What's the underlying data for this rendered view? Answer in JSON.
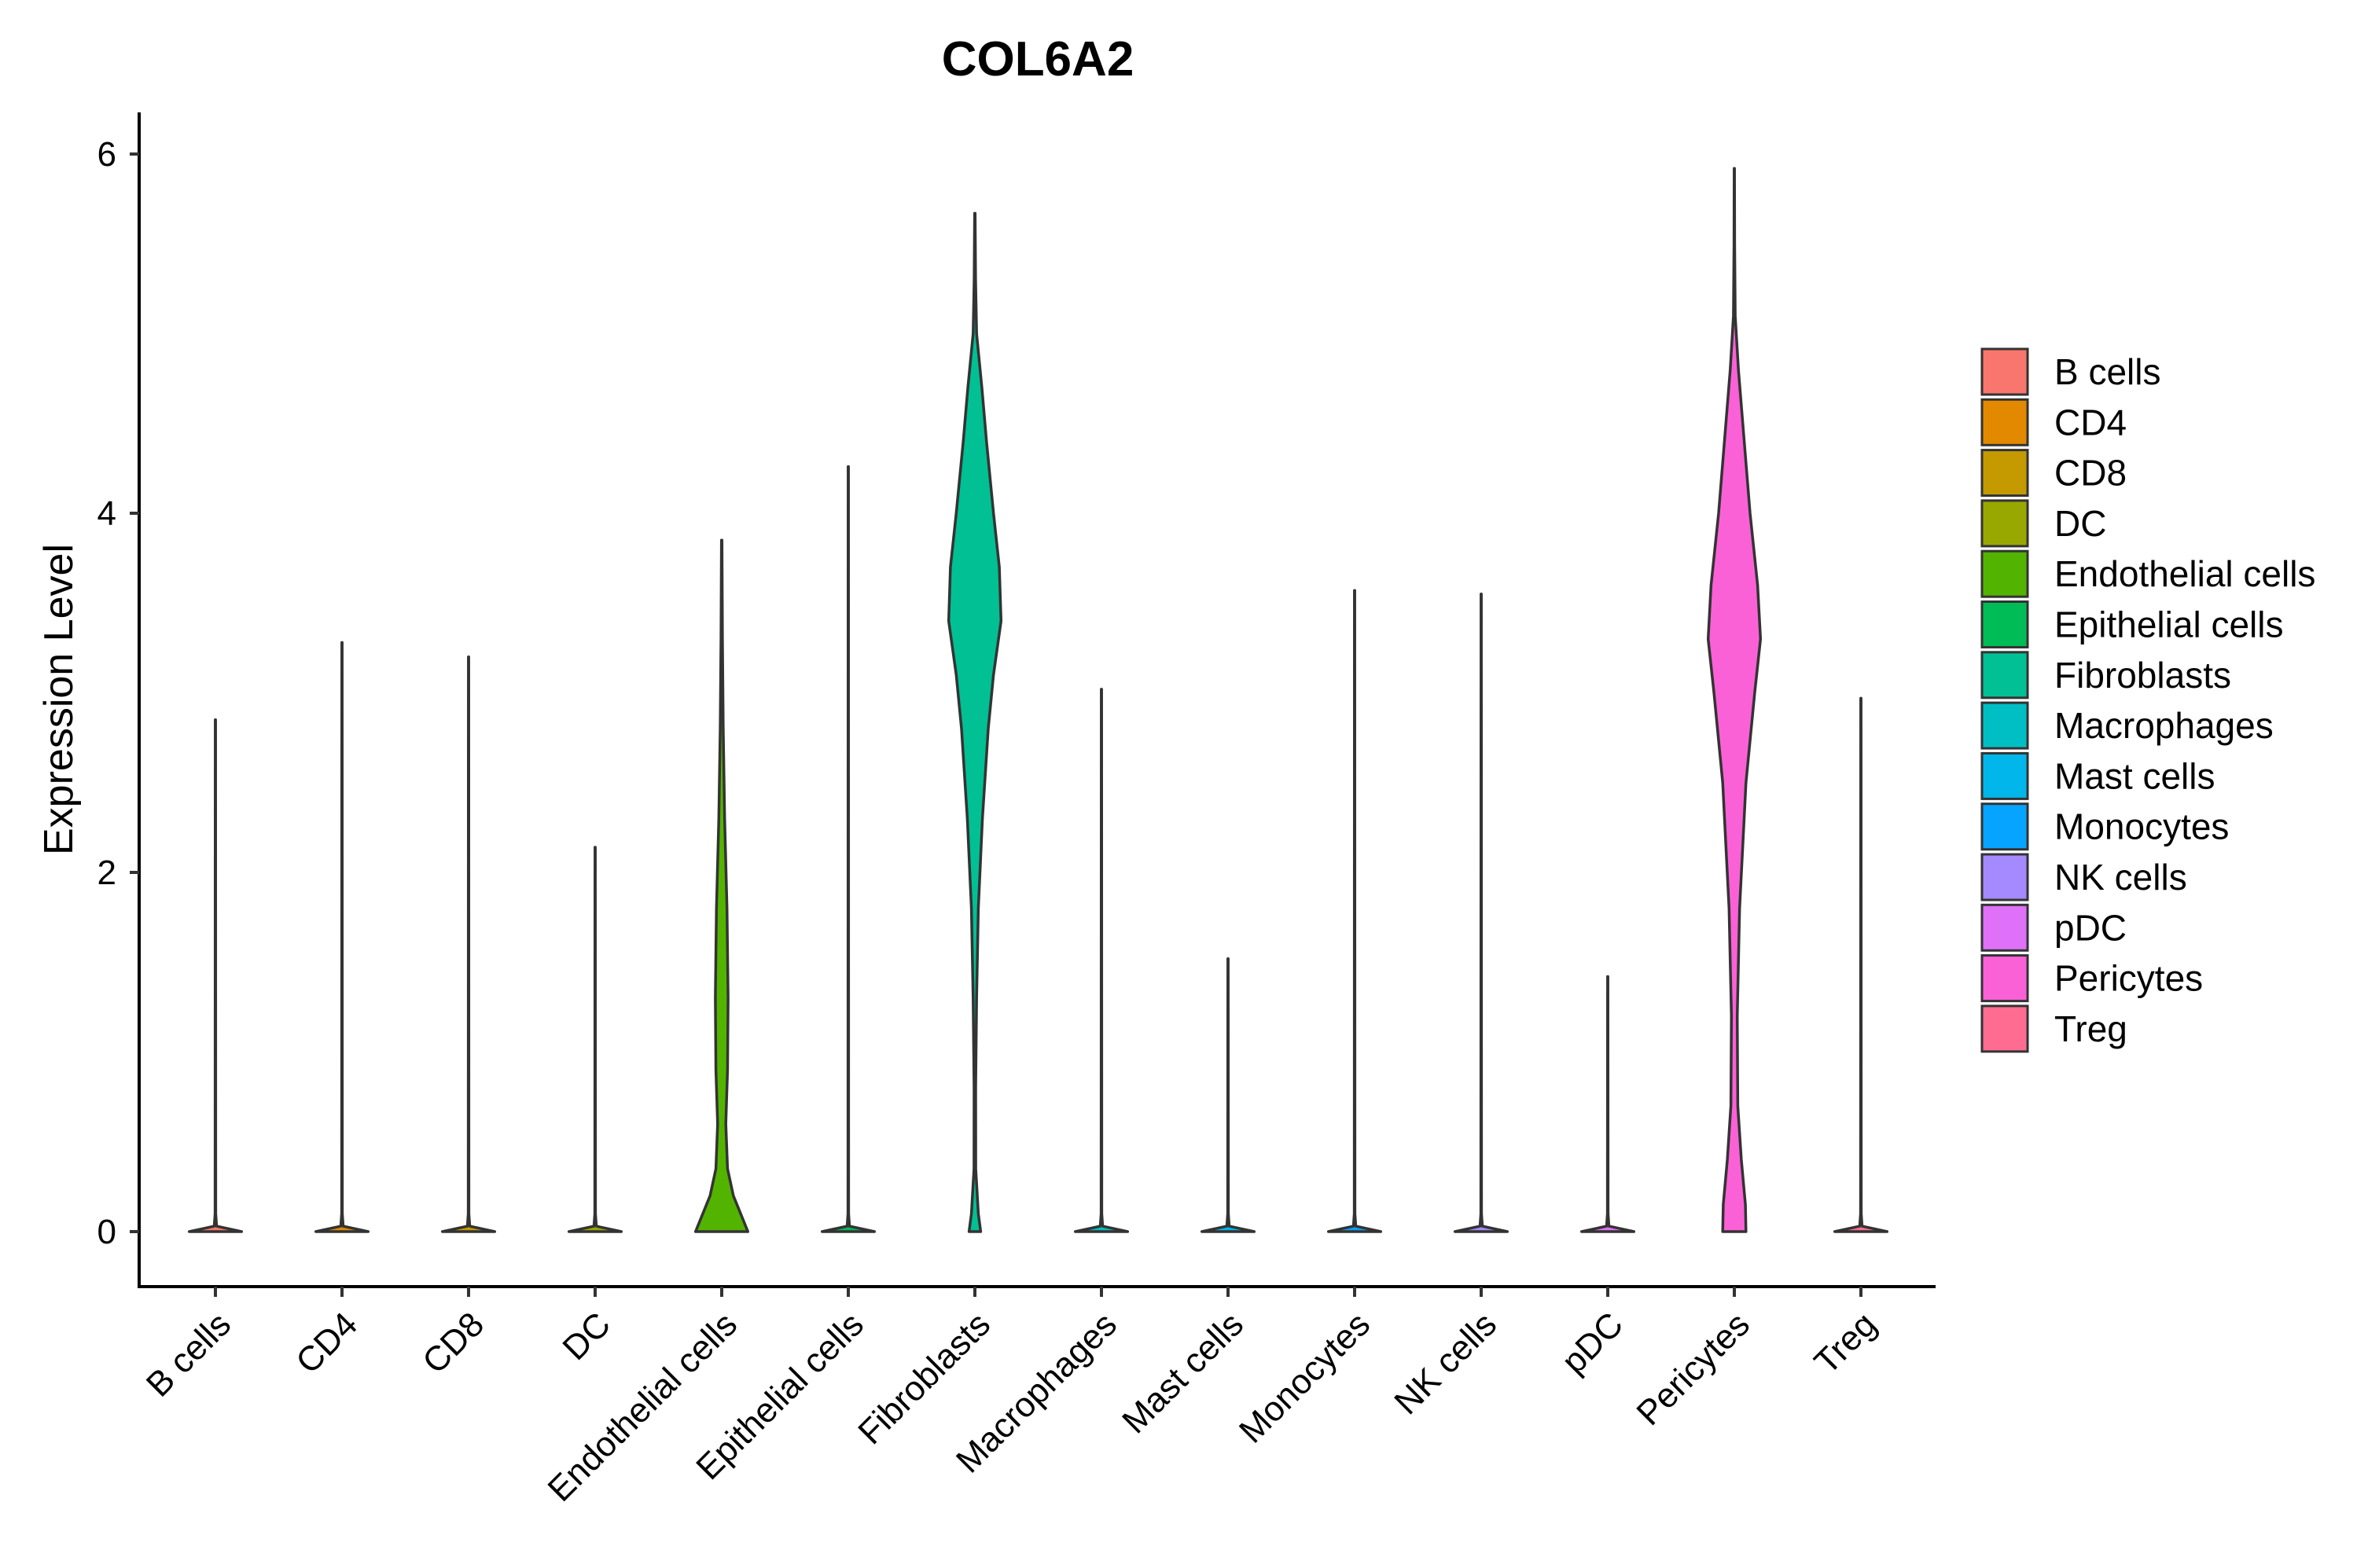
{
  "chart_data": {
    "type": "violin",
    "title": "COL6A2",
    "xlabel": "",
    "ylabel": "Expression Level",
    "ylim": [
      -0.3,
      6.2
    ],
    "yticks": [
      0,
      2,
      4,
      6
    ],
    "categories": [
      "B cells",
      "CD4",
      "CD8",
      "DC",
      "Endothelial cells",
      "Epithelial cells",
      "Fibroblasts",
      "Macrophages",
      "Mast cells",
      "Monocytes",
      "NK cells",
      "pDC",
      "Pericytes",
      "Treg"
    ],
    "series": [
      {
        "name": "B cells",
        "color": "#F8766D",
        "max": 2.85,
        "profile": [
          [
            0,
            0.45
          ],
          [
            0.03,
            0.02
          ],
          [
            0.1,
            0.006
          ],
          [
            2.85,
            0.003
          ]
        ]
      },
      {
        "name": "CD4",
        "color": "#E38900",
        "max": 3.28,
        "profile": [
          [
            0,
            0.45
          ],
          [
            0.03,
            0.02
          ],
          [
            0.1,
            0.006
          ],
          [
            3.28,
            0.003
          ]
        ]
      },
      {
        "name": "CD8",
        "color": "#C49A00",
        "max": 3.2,
        "profile": [
          [
            0,
            0.45
          ],
          [
            0.03,
            0.02
          ],
          [
            0.1,
            0.006
          ],
          [
            3.2,
            0.003
          ]
        ]
      },
      {
        "name": "DC",
        "color": "#99A800",
        "max": 2.14,
        "profile": [
          [
            0,
            0.45
          ],
          [
            0.03,
            0.02
          ],
          [
            0.1,
            0.006
          ],
          [
            2.14,
            0.003
          ]
        ]
      },
      {
        "name": "Endothelial cells",
        "color": "#53B400",
        "max": 3.85,
        "profile": [
          [
            0,
            0.45
          ],
          [
            0.08,
            0.35
          ],
          [
            0.2,
            0.2
          ],
          [
            0.35,
            0.1
          ],
          [
            0.6,
            0.07
          ],
          [
            0.9,
            0.1
          ],
          [
            1.3,
            0.11
          ],
          [
            1.8,
            0.09
          ],
          [
            2.3,
            0.05
          ],
          [
            2.8,
            0.025
          ],
          [
            3.3,
            0.012
          ],
          [
            3.85,
            0.004
          ]
        ]
      },
      {
        "name": "Epithelial cells",
        "color": "#00BC56",
        "max": 4.26,
        "profile": [
          [
            0,
            0.45
          ],
          [
            0.03,
            0.02
          ],
          [
            0.1,
            0.006
          ],
          [
            4.26,
            0.003
          ]
        ]
      },
      {
        "name": "Fibroblasts",
        "color": "#00C094",
        "max": 5.67,
        "profile": [
          [
            0,
            0.1
          ],
          [
            0.1,
            0.06
          ],
          [
            0.35,
            0.015
          ],
          [
            0.8,
            0.013
          ],
          [
            1.3,
            0.03
          ],
          [
            1.8,
            0.06
          ],
          [
            2.3,
            0.13
          ],
          [
            2.8,
            0.23
          ],
          [
            3.1,
            0.32
          ],
          [
            3.4,
            0.45
          ],
          [
            3.7,
            0.42
          ],
          [
            4.0,
            0.32
          ],
          [
            4.4,
            0.2
          ],
          [
            4.7,
            0.12
          ],
          [
            5.0,
            0.03
          ],
          [
            5.3,
            0.012
          ],
          [
            5.67,
            0.004
          ]
        ]
      },
      {
        "name": "Macrophages",
        "color": "#00BFC4",
        "max": 3.02,
        "profile": [
          [
            0,
            0.45
          ],
          [
            0.03,
            0.02
          ],
          [
            0.1,
            0.006
          ],
          [
            3.02,
            0.003
          ]
        ]
      },
      {
        "name": "Mast cells",
        "color": "#00B6EB",
        "max": 1.52,
        "profile": [
          [
            0,
            0.45
          ],
          [
            0.03,
            0.02
          ],
          [
            0.1,
            0.006
          ],
          [
            1.52,
            0.003
          ]
        ]
      },
      {
        "name": "Monocytes",
        "color": "#06A4FF",
        "max": 3.57,
        "profile": [
          [
            0,
            0.45
          ],
          [
            0.03,
            0.02
          ],
          [
            0.1,
            0.006
          ],
          [
            3.57,
            0.003
          ]
        ]
      },
      {
        "name": "NK cells",
        "color": "#A58AFF",
        "max": 3.55,
        "profile": [
          [
            0,
            0.45
          ],
          [
            0.03,
            0.02
          ],
          [
            0.1,
            0.006
          ],
          [
            3.55,
            0.003
          ]
        ]
      },
      {
        "name": "pDC",
        "color": "#DF70F8",
        "max": 1.42,
        "profile": [
          [
            0,
            0.45
          ],
          [
            0.03,
            0.02
          ],
          [
            0.1,
            0.006
          ],
          [
            1.42,
            0.003
          ]
        ]
      },
      {
        "name": "Pericytes",
        "color": "#FB61D7",
        "max": 5.92,
        "profile": [
          [
            0,
            0.2
          ],
          [
            0.15,
            0.19
          ],
          [
            0.4,
            0.12
          ],
          [
            0.7,
            0.06
          ],
          [
            1.2,
            0.05
          ],
          [
            1.8,
            0.09
          ],
          [
            2.5,
            0.2
          ],
          [
            3.0,
            0.35
          ],
          [
            3.3,
            0.45
          ],
          [
            3.6,
            0.4
          ],
          [
            4.0,
            0.27
          ],
          [
            4.4,
            0.17
          ],
          [
            4.8,
            0.07
          ],
          [
            5.1,
            0.015
          ],
          [
            5.5,
            0.006
          ],
          [
            5.92,
            0.003
          ]
        ]
      },
      {
        "name": "Treg",
        "color": "#FF6C91",
        "max": 2.97,
        "profile": [
          [
            0,
            0.45
          ],
          [
            0.03,
            0.02
          ],
          [
            0.1,
            0.006
          ],
          [
            2.97,
            0.003
          ]
        ]
      }
    ],
    "legend_position": "right",
    "grid": false
  }
}
